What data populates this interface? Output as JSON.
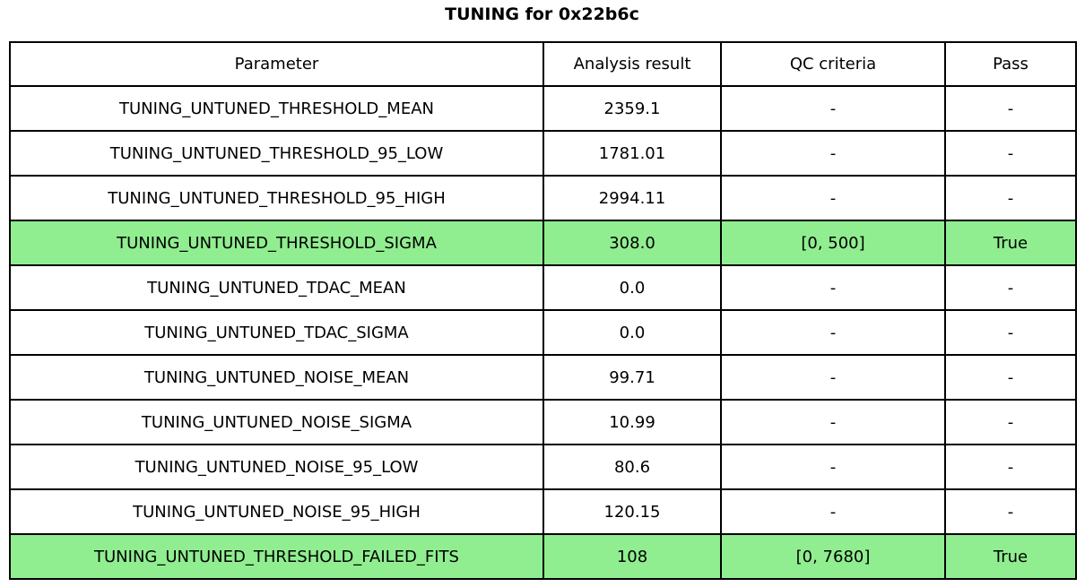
{
  "title": "TUNING for 0x22b6c",
  "colors": {
    "background": "#ffffff",
    "border": "#000000",
    "text": "#000000",
    "highlight": "#90ee90"
  },
  "chart_data": {
    "type": "table",
    "title": "TUNING for 0x22b6c",
    "columns": [
      "Parameter",
      "Analysis result",
      "QC criteria",
      "Pass"
    ],
    "rows": [
      [
        "TUNING_UNTUNED_THRESHOLD_MEAN",
        "2359.1",
        "-",
        "-"
      ],
      [
        "TUNING_UNTUNED_THRESHOLD_95_LOW",
        "1781.01",
        "-",
        "-"
      ],
      [
        "TUNING_UNTUNED_THRESHOLD_95_HIGH",
        "2994.11",
        "-",
        "-"
      ],
      [
        "TUNING_UNTUNED_THRESHOLD_SIGMA",
        "308.0",
        "[0, 500]",
        "True"
      ],
      [
        "TUNING_UNTUNED_TDAC_MEAN",
        "0.0",
        "-",
        "-"
      ],
      [
        "TUNING_UNTUNED_TDAC_SIGMA",
        "0.0",
        "-",
        "-"
      ],
      [
        "TUNING_UNTUNED_NOISE_MEAN",
        "99.71",
        "-",
        "-"
      ],
      [
        "TUNING_UNTUNED_NOISE_SIGMA",
        "10.99",
        "-",
        "-"
      ],
      [
        "TUNING_UNTUNED_NOISE_95_LOW",
        "80.6",
        "-",
        "-"
      ],
      [
        "TUNING_UNTUNED_NOISE_95_HIGH",
        "120.15",
        "-",
        "-"
      ],
      [
        "TUNING_UNTUNED_THRESHOLD_FAILED_FITS",
        "108",
        "[0, 7680]",
        "True"
      ]
    ],
    "highlighted_rows": [
      3,
      10
    ],
    "highlight_color": "#90ee90",
    "layout": {
      "grid": true,
      "header_row": true,
      "cell_text_align": "center"
    }
  }
}
